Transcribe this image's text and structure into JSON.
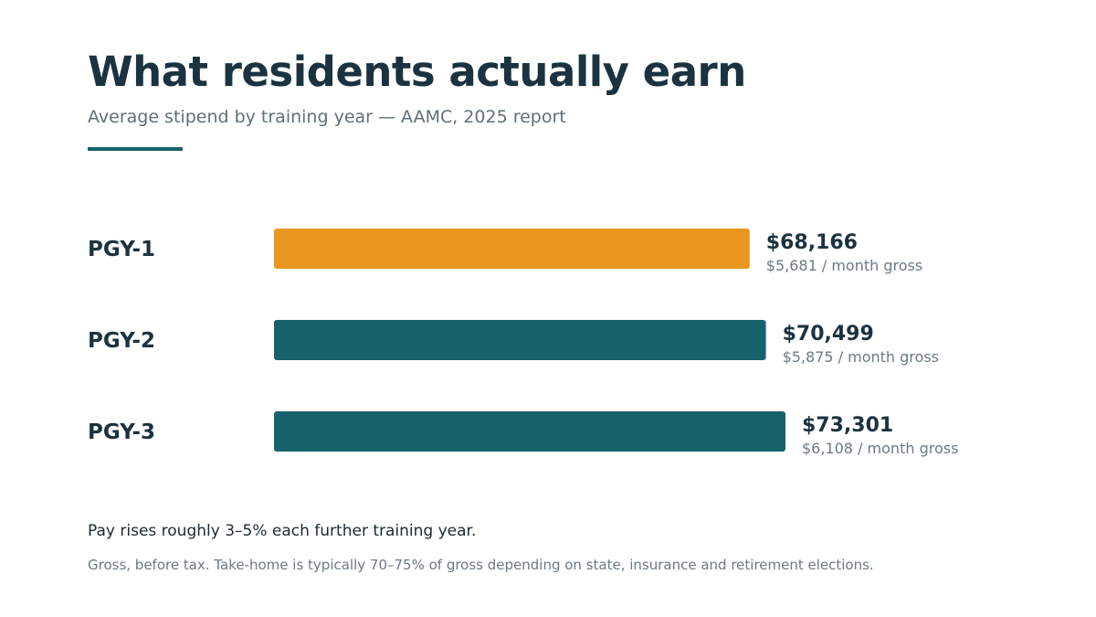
{
  "header": {
    "title": "What residents actually earn",
    "subtitle": "Average stipend by training year — AAMC, 2025 report"
  },
  "chart_data": {
    "type": "bar",
    "orientation": "horizontal",
    "title": "What residents actually earn",
    "subtitle": "Average stipend by training year — AAMC, 2025 report",
    "categories": [
      "PGY-1",
      "PGY-2",
      "PGY-3"
    ],
    "values": [
      68166,
      70499,
      73301
    ],
    "value_labels": [
      "$68,166",
      "$70,499",
      "$73,301"
    ],
    "sub_labels": [
      "$5,681 / month gross",
      "$5,875 / month gross",
      "$6,108 / month gross"
    ],
    "bar_colors": [
      "#e8961e",
      "#17636b",
      "#17636b"
    ],
    "xlim": [
      0,
      73301
    ],
    "grid": false,
    "legend": "none"
  },
  "notes": {
    "trend": "Pay rises roughly 3–5% each further training year.",
    "disclaimer": "Gross, before tax. Take-home is typically 70–75% of gross depending on state, insurance and retirement elections."
  },
  "colors": {
    "accent": "#e8961e",
    "primary": "#17636b",
    "text_dark": "#1b3340",
    "text_muted": "#6b7a82"
  }
}
